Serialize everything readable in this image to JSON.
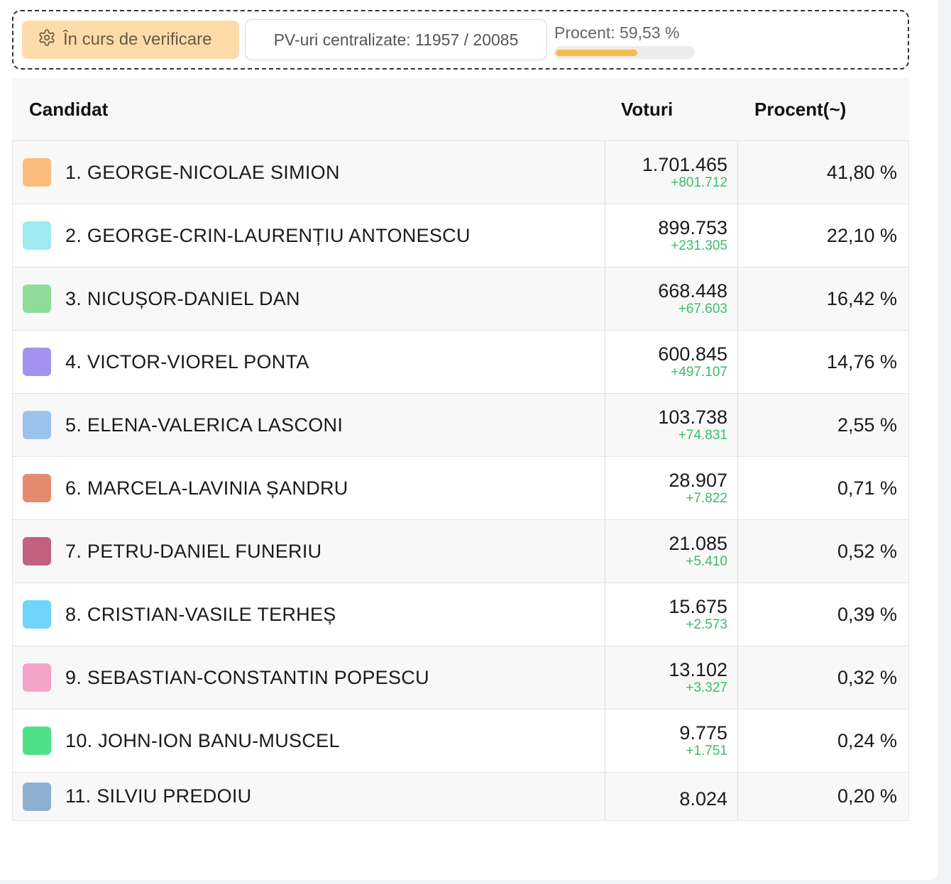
{
  "status": {
    "badge_label": "În curs de verificare",
    "pv_label": "PV-uri centralizate: 11957 / 20085",
    "progress_label": "Procent: 59,53 %",
    "progress_value": 0.5953,
    "badge_color": "#fddcaa",
    "progress_color": "#f5bc4a"
  },
  "table": {
    "headers": {
      "candidate": "Candidat",
      "votes": "Voturi",
      "percent": "Procent(~)"
    },
    "rows": [
      {
        "name": "1. GEORGE-NICOLAE SIMION",
        "votes": "1.701.465",
        "delta": "+801.712",
        "percent": "41,80 %",
        "color": "#fdbd7a"
      },
      {
        "name": "2. GEORGE-CRIN-LAURENȚIU ANTONESCU",
        "votes": "899.753",
        "delta": "+231.305",
        "percent": "22,10 %",
        "color": "#9fe9f3"
      },
      {
        "name": "3. NICUȘOR-DANIEL DAN",
        "votes": "668.448",
        "delta": "+67.603",
        "percent": "16,42 %",
        "color": "#8fdc9a"
      },
      {
        "name": "4. VICTOR-VIOREL PONTA",
        "votes": "600.845",
        "delta": "+497.107",
        "percent": "14,76 %",
        "color": "#a493ee"
      },
      {
        "name": "5. ELENA-VALERICA LASCONI",
        "votes": "103.738",
        "delta": "+74.831",
        "percent": "2,55 %",
        "color": "#9cc2ee"
      },
      {
        "name": "6. MARCELA-LAVINIA ȘANDRU",
        "votes": "28.907",
        "delta": "+7.822",
        "percent": "0,71 %",
        "color": "#e58a6e"
      },
      {
        "name": "7. PETRU-DANIEL FUNERIU",
        "votes": "21.085",
        "delta": "+5.410",
        "percent": "0,52 %",
        "color": "#c2607f"
      },
      {
        "name": "8. CRISTIAN-VASILE TERHEȘ",
        "votes": "15.675",
        "delta": "+2.573",
        "percent": "0,39 %",
        "color": "#6fd6fb"
      },
      {
        "name": "9. SEBASTIAN-CONSTANTIN POPESCU",
        "votes": "13.102",
        "delta": "+3.327",
        "percent": "0,32 %",
        "color": "#f3a3c8"
      },
      {
        "name": "10. JOHN-ION BANU-MUSCEL",
        "votes": "9.775",
        "delta": "+1.751",
        "percent": "0,24 %",
        "color": "#4fe188"
      },
      {
        "name": "11. SILVIU PREDOIU",
        "votes": "8.024",
        "delta": "",
        "percent": "0,20 %",
        "color": "#8fb0d0"
      }
    ]
  }
}
